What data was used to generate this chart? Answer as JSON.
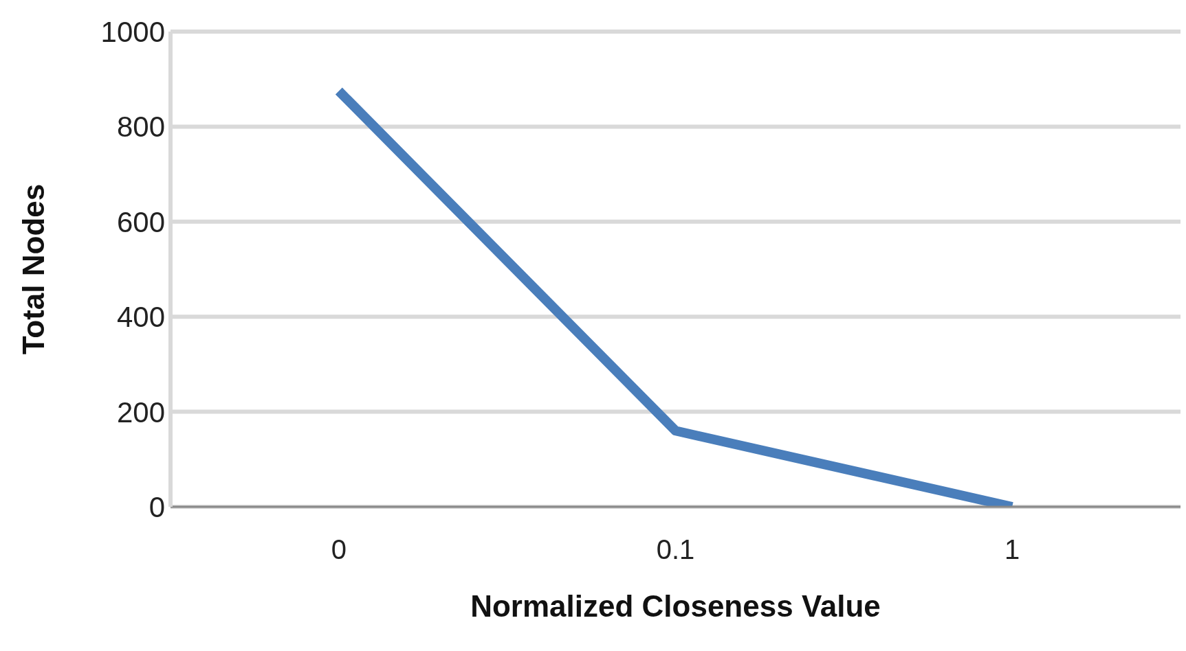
{
  "chart_data": {
    "type": "line",
    "xlabel": "Normalized Closeness Value",
    "ylabel": "Total Nodes",
    "categories": [
      "0",
      "0.1",
      "1"
    ],
    "series": [
      {
        "color": "#4a7ebb",
        "values": [
          875,
          160,
          0
        ]
      }
    ],
    "ylim": [
      0,
      1000
    ],
    "yticks": [
      0,
      200,
      400,
      600,
      800,
      1000
    ],
    "grid": "y",
    "legend": false
  }
}
